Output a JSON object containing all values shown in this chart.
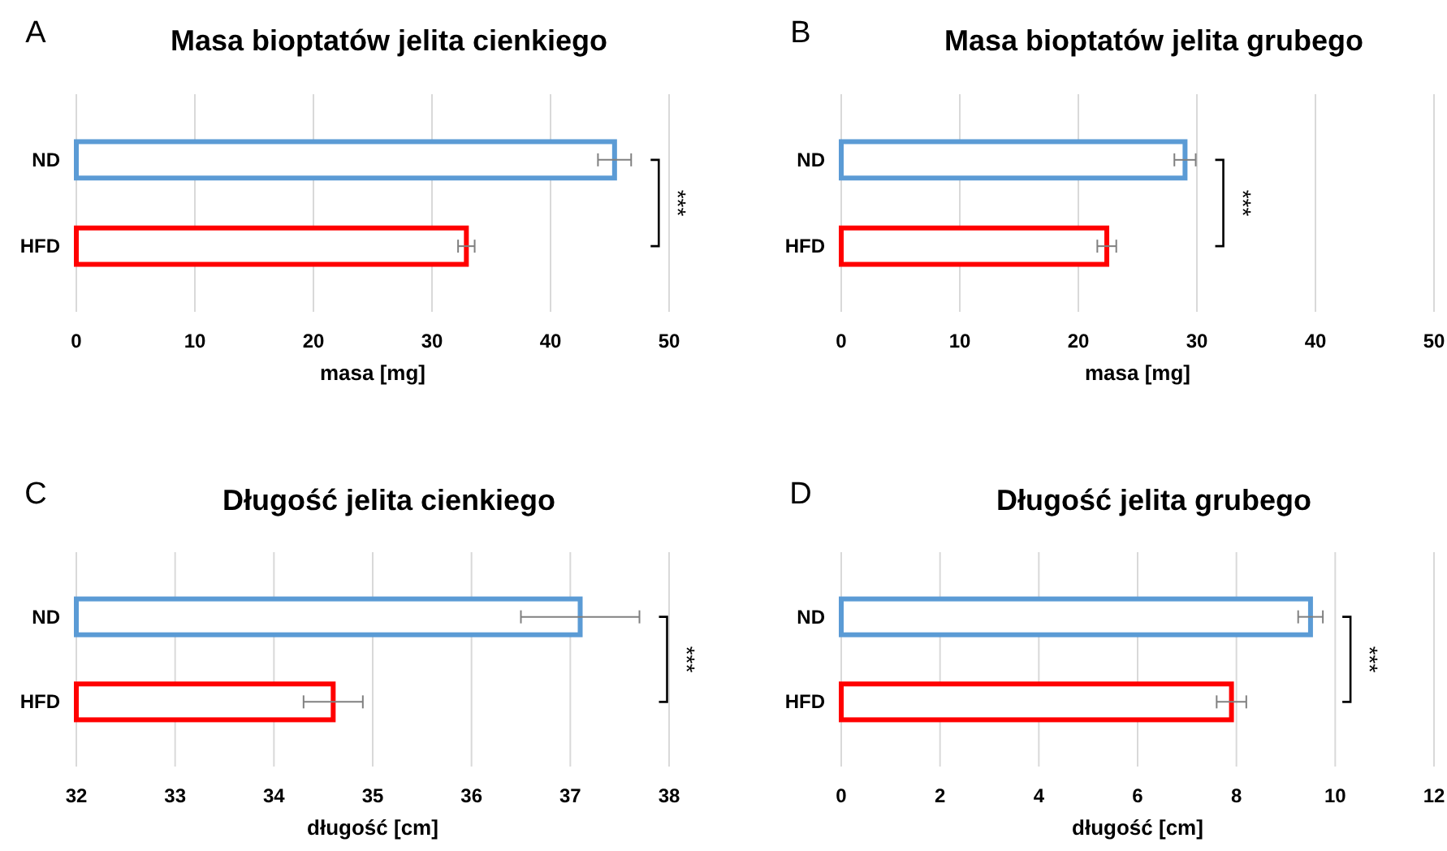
{
  "chart_data": [
    {
      "type": "bar",
      "orientation": "horizontal",
      "title": "Masa bioptatów jelita cienkiego",
      "xlabel": "masa [mg]",
      "categories": [
        "ND",
        "HFD"
      ],
      "values": [
        45.4,
        32.9
      ],
      "colors": [
        "#5b9bd5",
        "#ff0000"
      ],
      "errors": [
        1.4,
        0.7
      ],
      "xlim": [
        0,
        50
      ],
      "xticks": [
        0,
        10,
        20,
        30,
        40,
        50
      ],
      "grid": "x",
      "annotations": [
        "A",
        "***"
      ]
    },
    {
      "type": "bar",
      "orientation": "horizontal",
      "title": "Masa bioptatów jelita grubego",
      "xlabel": "masa [mg]",
      "categories": [
        "ND",
        "HFD"
      ],
      "values": [
        29.0,
        22.4
      ],
      "colors": [
        "#5b9bd5",
        "#ff0000"
      ],
      "errors": [
        0.9,
        0.8
      ],
      "xlim": [
        0,
        50
      ],
      "xticks": [
        0,
        10,
        20,
        30,
        40,
        50
      ],
      "grid": "x",
      "annotations": [
        "B",
        "***"
      ]
    },
    {
      "type": "bar",
      "orientation": "horizontal",
      "title": "Długość jelita cienkiego",
      "xlabel": "długość [cm]",
      "categories": [
        "ND",
        "HFD"
      ],
      "values": [
        37.1,
        34.6
      ],
      "colors": [
        "#5b9bd5",
        "#ff0000"
      ],
      "errors": [
        0.6,
        0.3
      ],
      "xlim": [
        32,
        38
      ],
      "xticks": [
        32,
        33,
        34,
        35,
        36,
        37,
        38
      ],
      "grid": "x",
      "annotations": [
        "C",
        "***"
      ]
    },
    {
      "type": "bar",
      "orientation": "horizontal",
      "title": "Długość jelita grubego",
      "xlabel": "długość [cm]",
      "categories": [
        "ND",
        "HFD"
      ],
      "values": [
        9.5,
        7.9
      ],
      "colors": [
        "#5b9bd5",
        "#ff0000"
      ],
      "errors": [
        0.25,
        0.3
      ],
      "xlim": [
        0,
        12
      ],
      "xticks": [
        0,
        2,
        4,
        6,
        8,
        10,
        12
      ],
      "grid": "x",
      "annotations": [
        "D",
        "***"
      ]
    }
  ]
}
